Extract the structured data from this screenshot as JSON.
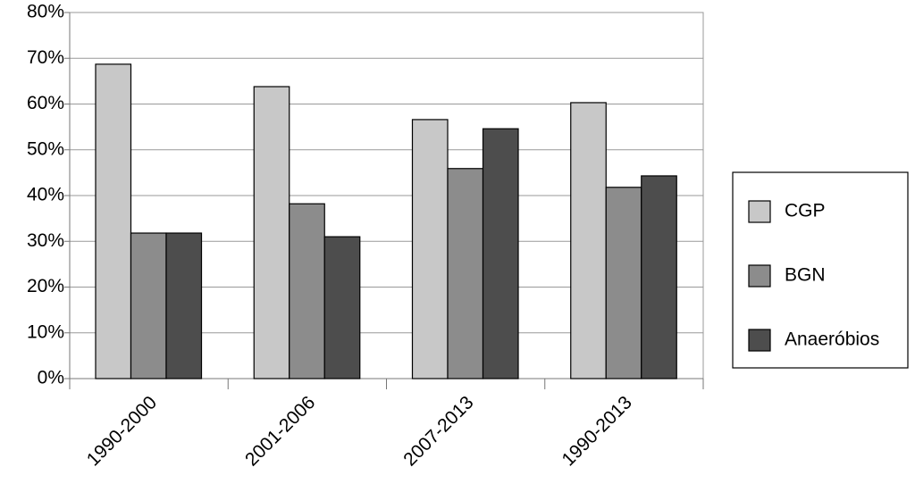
{
  "chart_data": {
    "type": "bar",
    "categories": [
      "1990-2000",
      "2001-2006",
      "2007-2013",
      "1990-2013"
    ],
    "series": [
      {
        "name": "CGP",
        "color": "#c8c8c8",
        "values": [
          68.7,
          63.8,
          56.6,
          60.3
        ]
      },
      {
        "name": "BGN",
        "color": "#8c8c8c",
        "values": [
          31.8,
          38.2,
          45.9,
          41.8
        ]
      },
      {
        "name": "Anaeróbios",
        "color": "#4d4d4d",
        "values": [
          31.8,
          31.0,
          54.6,
          44.3
        ]
      }
    ],
    "ylim": [
      0,
      80
    ],
    "yticks": [
      {
        "value": 0,
        "label": "0%"
      },
      {
        "value": 10,
        "label": "10%"
      },
      {
        "value": 20,
        "label": "20%"
      },
      {
        "value": 30,
        "label": "30%"
      },
      {
        "value": 40,
        "label": "40%"
      },
      {
        "value": 50,
        "label": "50%"
      },
      {
        "value": 60,
        "label": "60%"
      },
      {
        "value": 70,
        "label": "70%"
      },
      {
        "value": 80,
        "label": "80%"
      }
    ],
    "grid": true,
    "legend": "right"
  }
}
